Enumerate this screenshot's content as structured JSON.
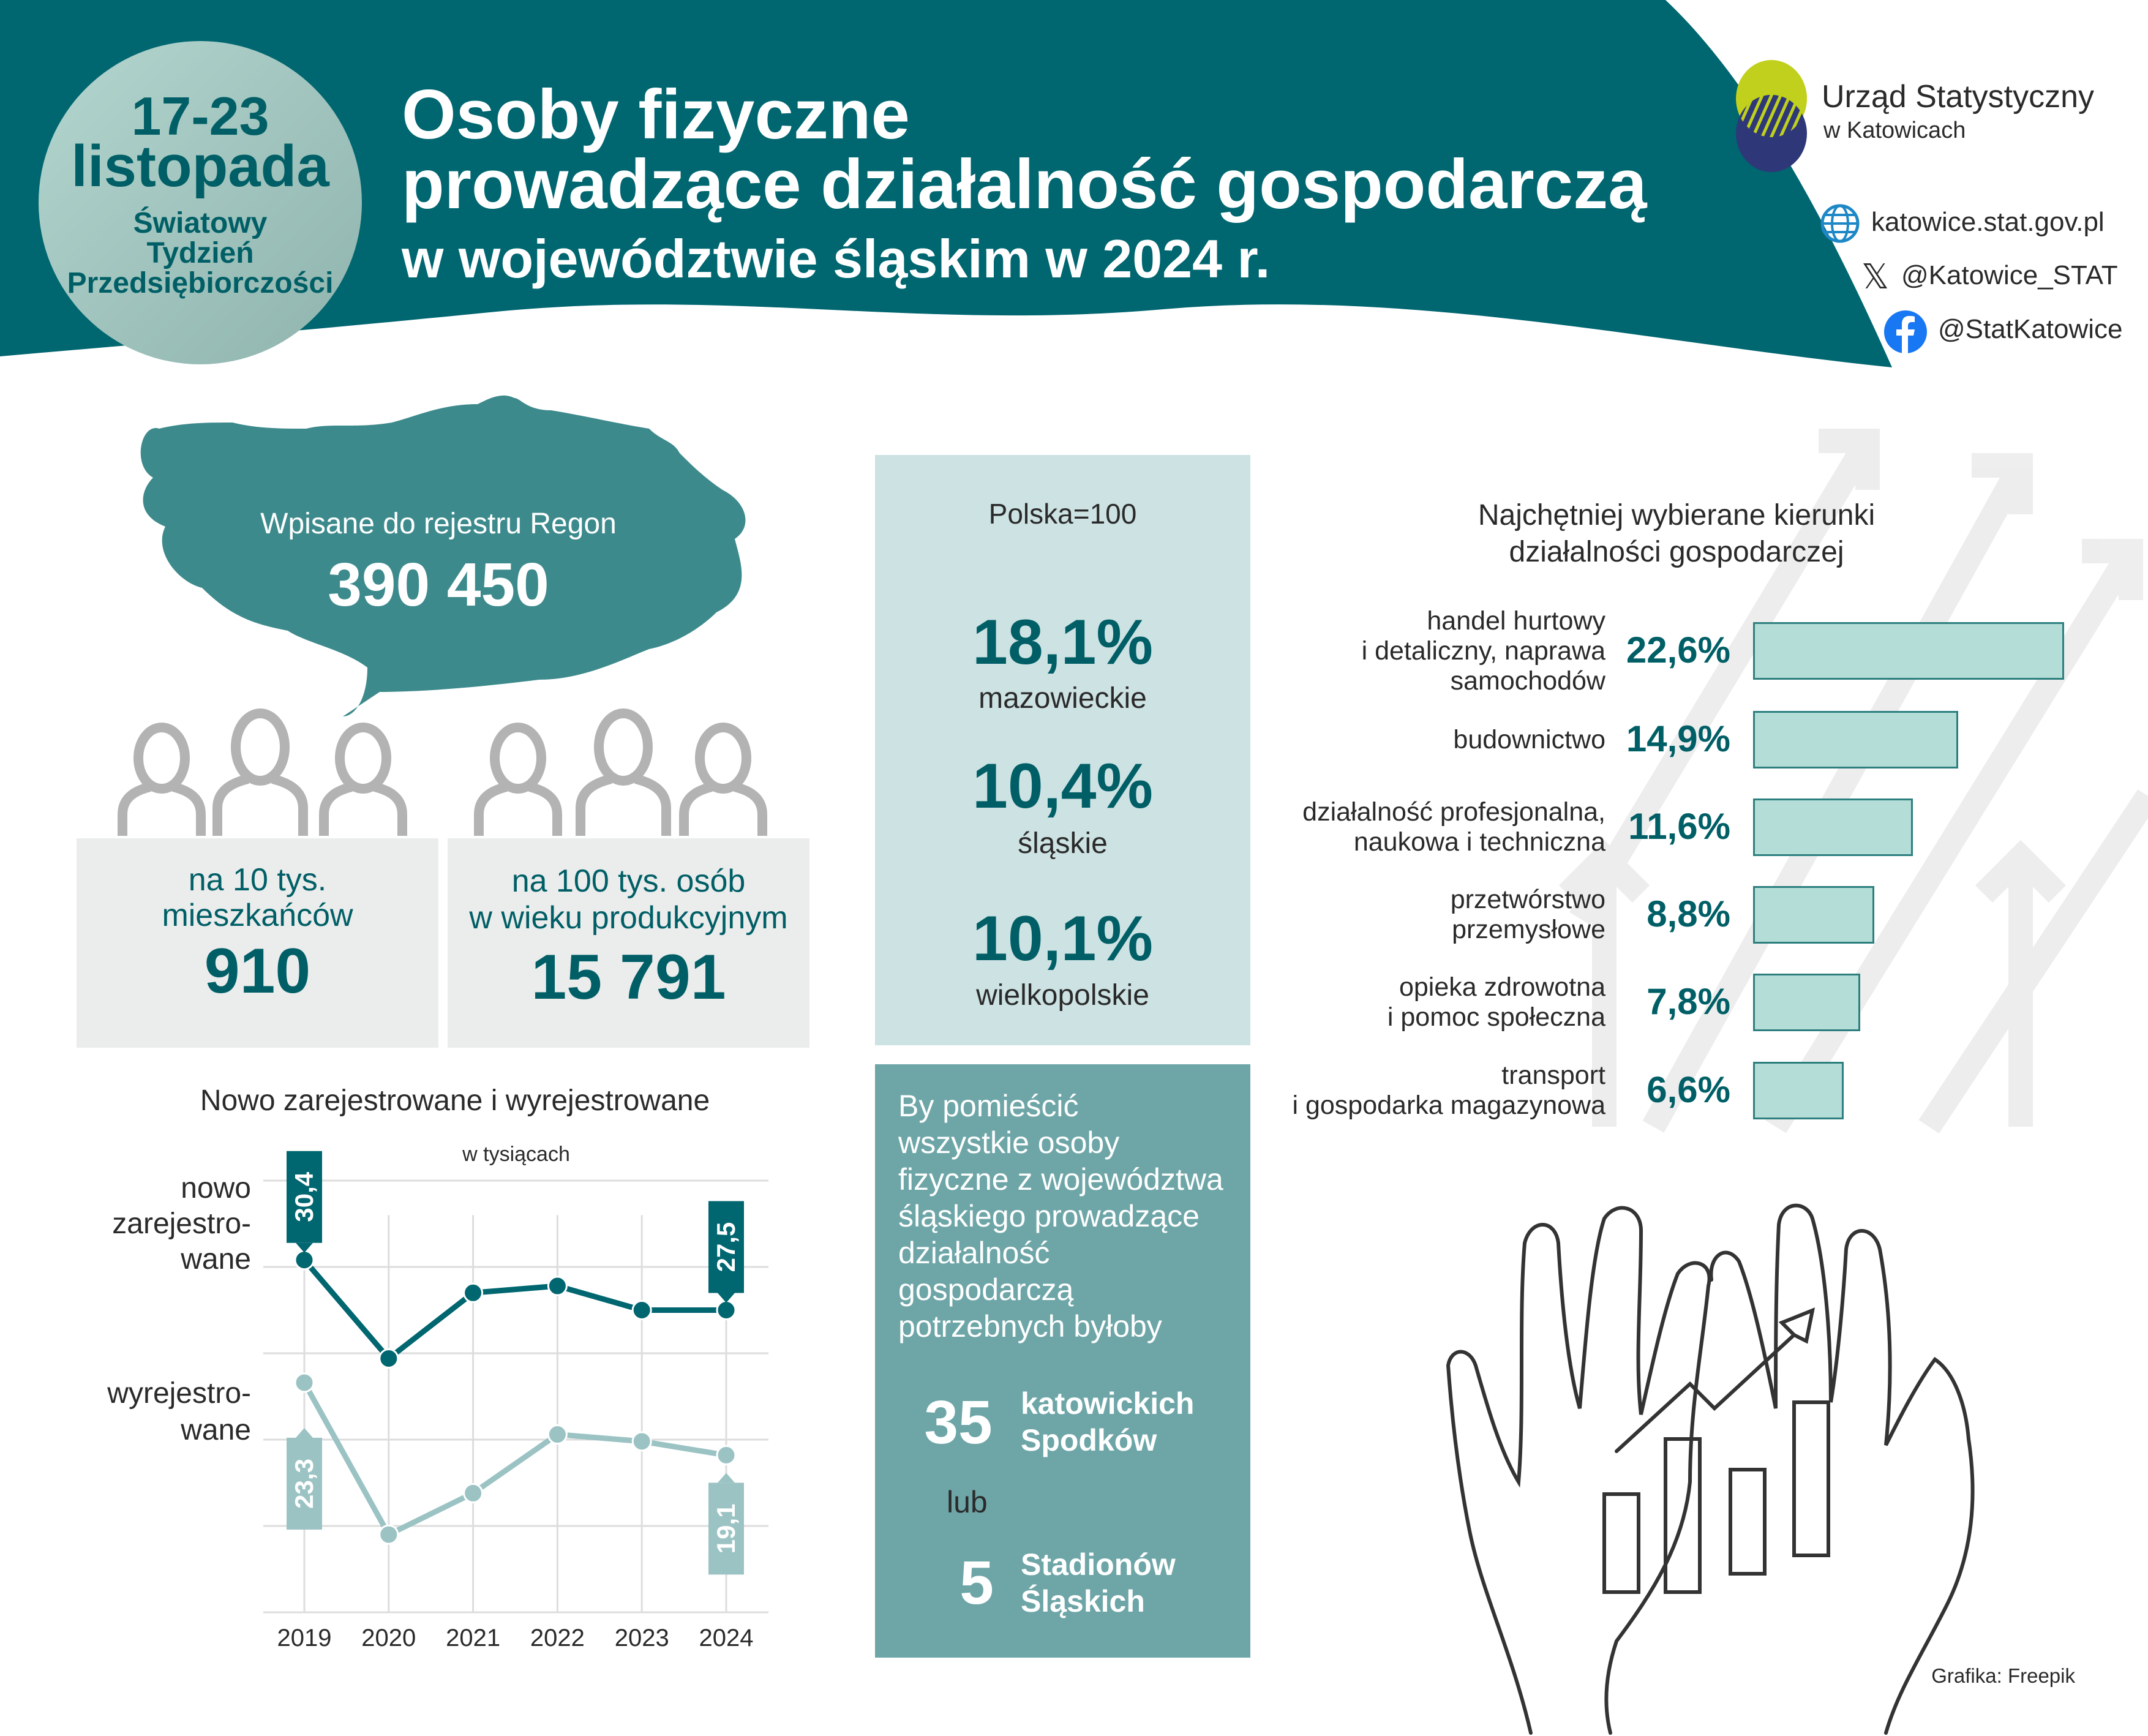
{
  "badge": {
    "dates": "17-23",
    "month": "listopada",
    "line1": "Światowy",
    "line2": "Tydzień",
    "line3": "Przedsiębiorczości"
  },
  "header": {
    "title_line1": "Osoby fizyczne",
    "title_line2": "prowadzące działalność gospodarczą",
    "title_line3": "w województwie śląskim w 2024 r."
  },
  "logo": {
    "name": "Urząd Statystyczny",
    "city": "w Katowicach"
  },
  "contacts": {
    "website": "katowice.stat.gov.pl",
    "x": "@Katowice_STAT",
    "facebook": "@StatKatowice",
    "icons": [
      "globe-icon",
      "x-icon",
      "facebook-icon"
    ]
  },
  "regon": {
    "label": "Wpisane do rejestru Regon",
    "value": "390 450"
  },
  "per_capita": [
    {
      "line1": "na 10 tys.",
      "line2": "mieszkańców",
      "value": "910"
    },
    {
      "line1": "na 100 tys. osób",
      "line2": "w wieku produkcyjnym",
      "value": "15 791"
    }
  ],
  "share": {
    "base": "Polska=100",
    "items": [
      {
        "value": "18,1%",
        "region": "mazowieckie"
      },
      {
        "value": "10,4%",
        "region": "śląskie"
      },
      {
        "value": "10,1%",
        "region": "wielkopolskie"
      }
    ]
  },
  "comparison": {
    "lines": [
      "By pomieścić",
      "wszystkie osoby",
      "fizyczne z województwa",
      "śląskiego prowadzące",
      "działalność",
      "gospodarczą",
      "potrzebnych byłoby"
    ],
    "count1": "35",
    "label1a": "katowickich",
    "label1b": "Spodków",
    "or": "lub",
    "count2": "5",
    "label2a": "Stadionów",
    "label2b": "Śląskich"
  },
  "credit": "Grafika: Freepik",
  "colors": {
    "primary": "#006670",
    "light_teal": "#9cc3c4",
    "bar_fill": "#b3ddd6",
    "lime": "#c0d01c",
    "navy": "#2e3878"
  },
  "chart_data": [
    {
      "type": "line",
      "title": "Nowo zarejestrowane i wyrejestrowane",
      "subtitle": "w tysiącach",
      "categories": [
        "2019",
        "2020",
        "2021",
        "2022",
        "2023",
        "2024"
      ],
      "ylim": [
        10,
        35
      ],
      "grid": true,
      "series": [
        {
          "name": "nowo zarejestro- wane",
          "name_lines": [
            "nowo",
            "zarejestro-",
            "wane"
          ],
          "color": "#006670",
          "values": [
            30.4,
            24.7,
            28.5,
            28.9,
            27.5,
            27.5
          ],
          "labels": {
            "0": "30,4",
            "5": "27,5"
          }
        },
        {
          "name": "wyrejestro- wane",
          "name_lines": [
            "wyrejestro-",
            "wane"
          ],
          "color": "#9cc3c4",
          "values": [
            23.3,
            14.5,
            16.9,
            20.3,
            19.9,
            19.1
          ],
          "labels": {
            "0": "23,3",
            "5": "19,1"
          }
        }
      ]
    },
    {
      "type": "bar",
      "orientation": "horizontal",
      "title": "Najchętniej wybierane kierunki działalności gospodarczej",
      "title_lines": [
        "Najchętniej wybierane kierunki",
        "działalności gospodarczej"
      ],
      "categories": [
        [
          "handel hurtowy",
          "i detaliczny, naprawa",
          "samochodów"
        ],
        [
          "budownictwo"
        ],
        [
          "działalność profesjonalna,",
          "naukowa i techniczna"
        ],
        [
          "przetwórstwo",
          "przemysłowe"
        ],
        [
          "opieka zdrowotna",
          "i pomoc społeczna"
        ],
        [
          "transport",
          "i gospodarka magazynowa"
        ]
      ],
      "values": [
        22.6,
        14.9,
        11.6,
        8.8,
        7.8,
        6.6
      ],
      "value_labels": [
        "22,6%",
        "14,9%",
        "11,6%",
        "8,8%",
        "7,8%",
        "6,6%"
      ]
    }
  ]
}
